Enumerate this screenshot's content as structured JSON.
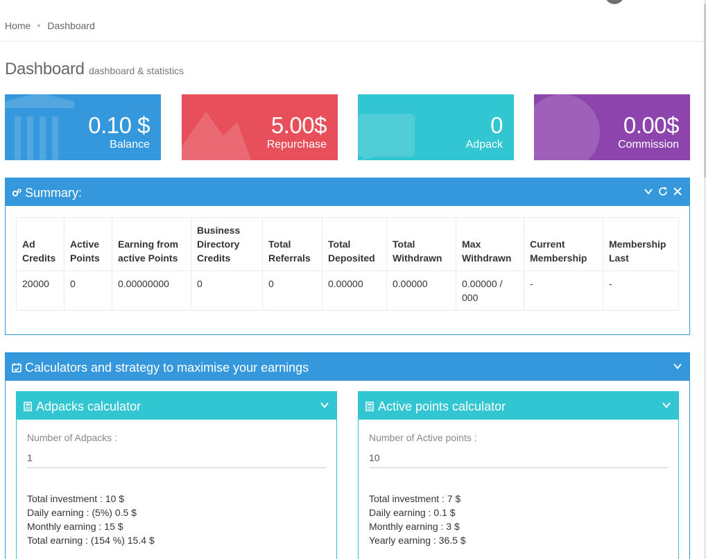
{
  "breadcrumb": {
    "home": "Home",
    "current": "Dashboard"
  },
  "page": {
    "title": "Dashboard",
    "subtitle": "dashboard & statistics"
  },
  "stats": [
    {
      "value": "0.10 $",
      "label": "Balance",
      "color": "#3598dc",
      "icon": "bank-icon"
    },
    {
      "value": "5.00$",
      "label": "Repurchase",
      "color": "#e7505a",
      "icon": "chart-icon"
    },
    {
      "value": "0",
      "label": "Adpack",
      "color": "#32c5d2",
      "icon": "comments-icon"
    },
    {
      "value": "0.00$",
      "label": "Commission",
      "color": "#8e44ad",
      "icon": "globe-icon"
    }
  ],
  "summary": {
    "title": "Summary:",
    "headers": [
      "Ad Credits",
      "Active Points",
      "Earning from active Points",
      "Business Directory Credits",
      "Total Referrals",
      "Total Deposited",
      "Total Withdrawn",
      "Max Withdrawn",
      "Current Membership",
      "Membership Last"
    ],
    "row": [
      "20000",
      "0",
      "0.00000000",
      "0",
      "0",
      "0.00000",
      "0.00000",
      "0.00000 / 000",
      "-",
      "-"
    ]
  },
  "strategy": {
    "title": "Calculators and strategy to maximise your earnings"
  },
  "adpacks_calc": {
    "title": "Adpacks calculator",
    "field_label": "Number of Adpacks :",
    "field_value": "1",
    "results": [
      "Total investment : 10 $",
      "Daily earning : (5%) 0.5 $",
      "Monthly earning : 15 $",
      "Total earning : (154 %) 15.4 $"
    ]
  },
  "points_calc": {
    "title": "Active points calculator",
    "field_label": "Number of Active points :",
    "field_value": "10",
    "results": [
      "Total investment : 7 $",
      "Daily earning : 0.1 $",
      "Monthly earning : 3 $",
      "Yearly earning : 36.5 $"
    ]
  },
  "colors": {
    "blue": "#3598dc",
    "teal": "#32c5d2",
    "red": "#e7505a",
    "purple": "#8e44ad"
  }
}
